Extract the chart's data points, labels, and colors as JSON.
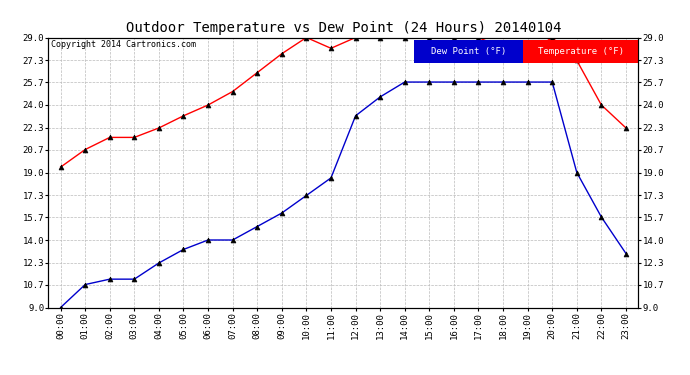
{
  "title": "Outdoor Temperature vs Dew Point (24 Hours) 20140104",
  "copyright": "Copyright 2014 Cartronics.com",
  "hours": [
    "00:00",
    "01:00",
    "02:00",
    "03:00",
    "04:00",
    "05:00",
    "06:00",
    "07:00",
    "08:00",
    "09:00",
    "10:00",
    "11:00",
    "12:00",
    "13:00",
    "14:00",
    "15:00",
    "16:00",
    "17:00",
    "18:00",
    "19:00",
    "20:00",
    "21:00",
    "22:00",
    "23:00"
  ],
  "temperature": [
    19.4,
    20.7,
    21.6,
    21.6,
    22.3,
    23.2,
    24.0,
    25.0,
    26.4,
    27.8,
    29.0,
    28.2,
    29.0,
    29.0,
    29.0,
    29.0,
    29.0,
    29.0,
    28.2,
    27.8,
    29.0,
    27.3,
    24.0,
    22.3
  ],
  "dew_point": [
    9.0,
    10.7,
    11.1,
    11.1,
    12.3,
    13.3,
    14.0,
    14.0,
    15.0,
    16.0,
    17.3,
    18.6,
    23.2,
    24.6,
    25.7,
    25.7,
    25.7,
    25.7,
    25.7,
    25.7,
    25.7,
    19.0,
    15.7,
    13.0
  ],
  "ylim": [
    9.0,
    29.0
  ],
  "yticks": [
    9.0,
    10.7,
    12.3,
    14.0,
    15.7,
    17.3,
    19.0,
    20.7,
    22.3,
    24.0,
    25.7,
    27.3,
    29.0
  ],
  "temp_color": "#ff0000",
  "dew_color": "#0000cc",
  "bg_color": "#ffffff",
  "grid_color": "#bbbbbb",
  "legend_dew_bg": "#0000cc",
  "legend_temp_bg": "#ff0000",
  "legend_dew_text": "Dew Point (°F)",
  "legend_temp_text": "Temperature (°F)"
}
